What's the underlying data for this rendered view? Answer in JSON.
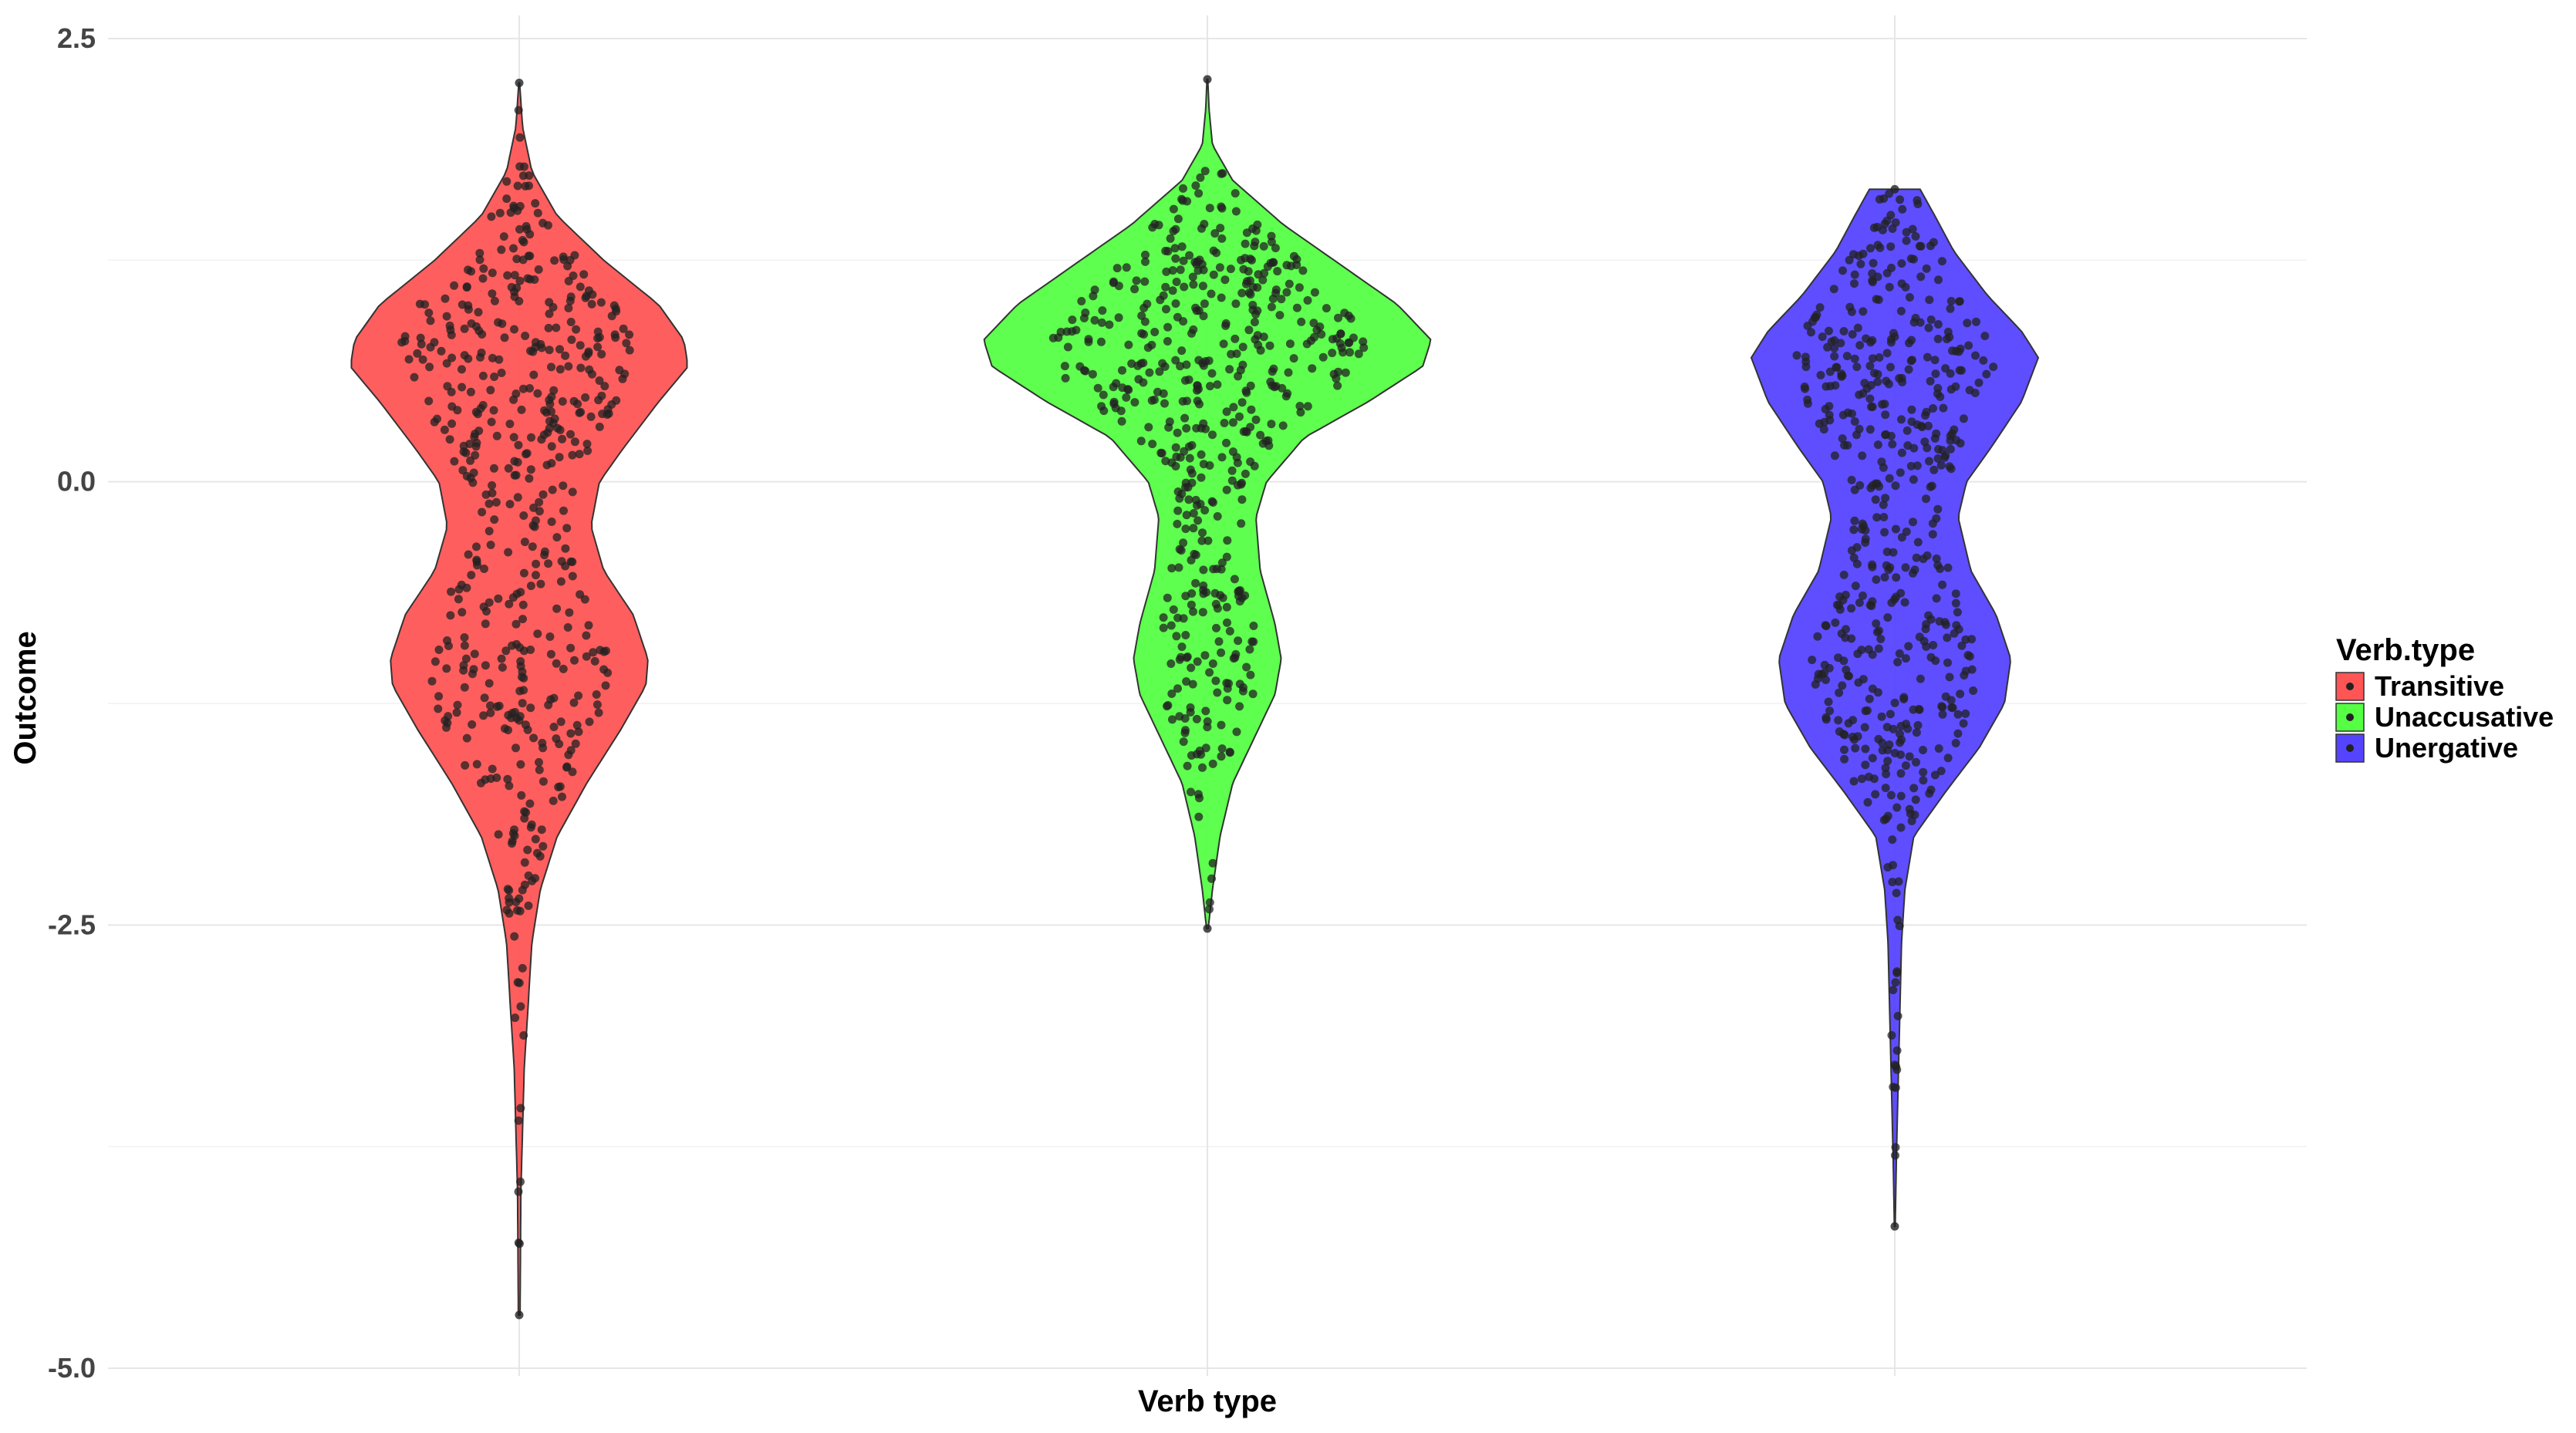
{
  "chart_data": {
    "type": "violin",
    "xlabel": "Verb type",
    "ylabel": "Outcome",
    "ylim": [
      -5.0,
      2.5
    ],
    "yticks": [
      "2.5",
      "0.0",
      "-2.5",
      "-5.0"
    ],
    "grid": true,
    "legend": {
      "title": "Verb.type",
      "placement": "right",
      "entries": [
        "Transitive",
        "Unaccusative",
        "Unergative"
      ]
    },
    "categories": [
      "Transitive",
      "Unaccusative",
      "Unergative"
    ],
    "colors": [
      "#FF5555",
      "#55FF44",
      "#5544FF"
    ],
    "series": [
      {
        "name": "Transitive",
        "min": -4.7,
        "max": 2.25,
        "density": [
          [
            -4.7,
            0.002
          ],
          [
            -4.0,
            0.004
          ],
          [
            -3.3,
            0.012
          ],
          [
            -3.0,
            0.02
          ],
          [
            -2.6,
            0.03
          ],
          [
            -2.3,
            0.05
          ],
          [
            -2.0,
            0.09
          ],
          [
            -1.7,
            0.16
          ],
          [
            -1.4,
            0.24
          ],
          [
            -1.15,
            0.3
          ],
          [
            -1.0,
            0.305
          ],
          [
            -0.75,
            0.27
          ],
          [
            -0.5,
            0.2
          ],
          [
            -0.25,
            0.17
          ],
          [
            0.0,
            0.19
          ],
          [
            0.2,
            0.25
          ],
          [
            0.45,
            0.33
          ],
          [
            0.65,
            0.4
          ],
          [
            0.8,
            0.39
          ],
          [
            1.0,
            0.33
          ],
          [
            1.25,
            0.2
          ],
          [
            1.5,
            0.09
          ],
          [
            1.75,
            0.03
          ],
          [
            2.0,
            0.008
          ],
          [
            2.25,
            0.001
          ]
        ]
      },
      {
        "name": "Unaccusative",
        "min": -2.52,
        "max": 2.27,
        "density": [
          [
            -2.52,
            0.002
          ],
          [
            -2.3,
            0.012
          ],
          [
            -2.0,
            0.03
          ],
          [
            -1.7,
            0.06
          ],
          [
            -1.45,
            0.11
          ],
          [
            -1.2,
            0.16
          ],
          [
            -1.0,
            0.175
          ],
          [
            -0.8,
            0.16
          ],
          [
            -0.5,
            0.125
          ],
          [
            -0.2,
            0.115
          ],
          [
            0.0,
            0.14
          ],
          [
            0.25,
            0.23
          ],
          [
            0.45,
            0.38
          ],
          [
            0.65,
            0.51
          ],
          [
            0.8,
            0.53
          ],
          [
            1.0,
            0.45
          ],
          [
            1.2,
            0.33
          ],
          [
            1.45,
            0.18
          ],
          [
            1.7,
            0.06
          ],
          [
            1.9,
            0.012
          ],
          [
            2.1,
            0.004
          ],
          [
            2.27,
            0.001
          ]
        ]
      },
      {
        "name": "Unergative",
        "min": -4.2,
        "max": 1.65,
        "density": [
          [
            -4.2,
            0.001
          ],
          [
            -3.8,
            0.004
          ],
          [
            -3.4,
            0.008
          ],
          [
            -3.0,
            0.012
          ],
          [
            -2.6,
            0.016
          ],
          [
            -2.3,
            0.024
          ],
          [
            -2.0,
            0.045
          ],
          [
            -1.75,
            0.12
          ],
          [
            -1.5,
            0.2
          ],
          [
            -1.25,
            0.26
          ],
          [
            -1.0,
            0.275
          ],
          [
            -0.75,
            0.24
          ],
          [
            -0.5,
            0.18
          ],
          [
            -0.2,
            0.15
          ],
          [
            0.0,
            0.17
          ],
          [
            0.2,
            0.23
          ],
          [
            0.45,
            0.3
          ],
          [
            0.7,
            0.34
          ],
          [
            0.85,
            0.3
          ],
          [
            1.05,
            0.22
          ],
          [
            1.3,
            0.14
          ],
          [
            1.5,
            0.095
          ],
          [
            1.65,
            0.06
          ]
        ]
      }
    ]
  }
}
